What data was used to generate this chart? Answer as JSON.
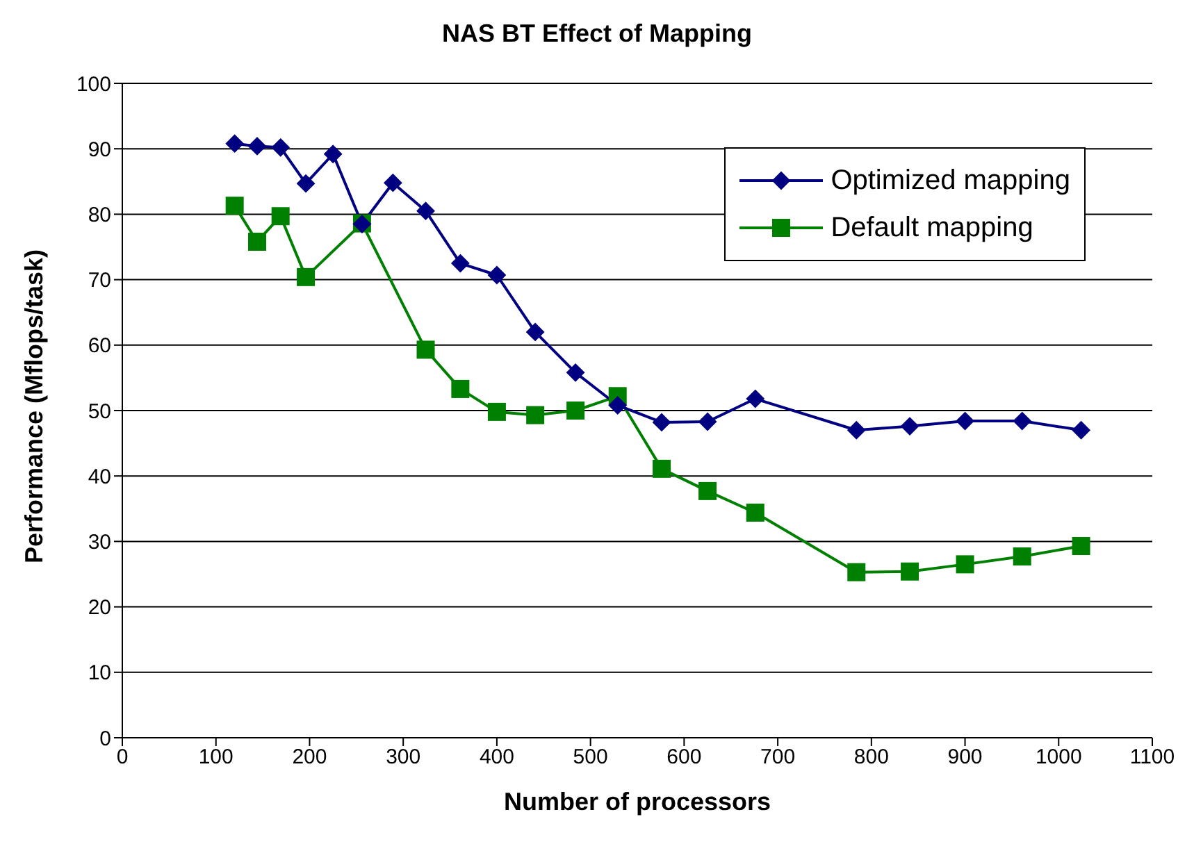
{
  "chart_data": {
    "type": "line",
    "title": "NAS BT Effect of Mapping",
    "xlabel": "Number of processors",
    "ylabel": "Performance (Mflops/task)",
    "series": [
      {
        "name": "Optimized mapping",
        "color": "#000080",
        "marker": "diamond",
        "x": [
          120,
          144,
          169,
          196,
          225,
          256,
          289,
          324,
          361,
          400,
          441,
          484,
          529,
          576,
          625,
          676,
          784,
          841,
          900,
          961,
          1024
        ],
        "values": [
          90.8,
          90.4,
          90.2,
          84.7,
          89.2,
          78.5,
          84.8,
          80.5,
          72.5,
          70.7,
          62,
          55.8,
          50.8,
          48.2,
          48.3,
          51.8,
          47,
          47.6,
          48.4,
          48.4,
          47
        ]
      },
      {
        "name": "Default mapping",
        "color": "#008000",
        "marker": "square",
        "x": [
          120,
          144,
          169,
          196,
          256,
          324,
          361,
          400,
          441,
          484,
          529,
          576,
          625,
          676,
          784,
          841,
          900,
          961,
          1024
        ],
        "values": [
          81.3,
          75.8,
          79.7,
          70.4,
          78.6,
          59.3,
          53.3,
          49.8,
          49.3,
          50,
          52.2,
          41.1,
          37.7,
          34.4,
          25.3,
          25.4,
          26.5,
          27.7,
          29.3
        ]
      }
    ],
    "xlim": [
      0,
      1100
    ],
    "xticks": [
      0,
      100,
      200,
      300,
      400,
      500,
      600,
      700,
      800,
      900,
      1000,
      1100
    ],
    "ylim": [
      0,
      100
    ],
    "yticks": [
      0,
      10,
      20,
      30,
      40,
      50,
      60,
      70,
      80,
      90,
      100
    ],
    "grid": "y",
    "legend": "top right"
  }
}
